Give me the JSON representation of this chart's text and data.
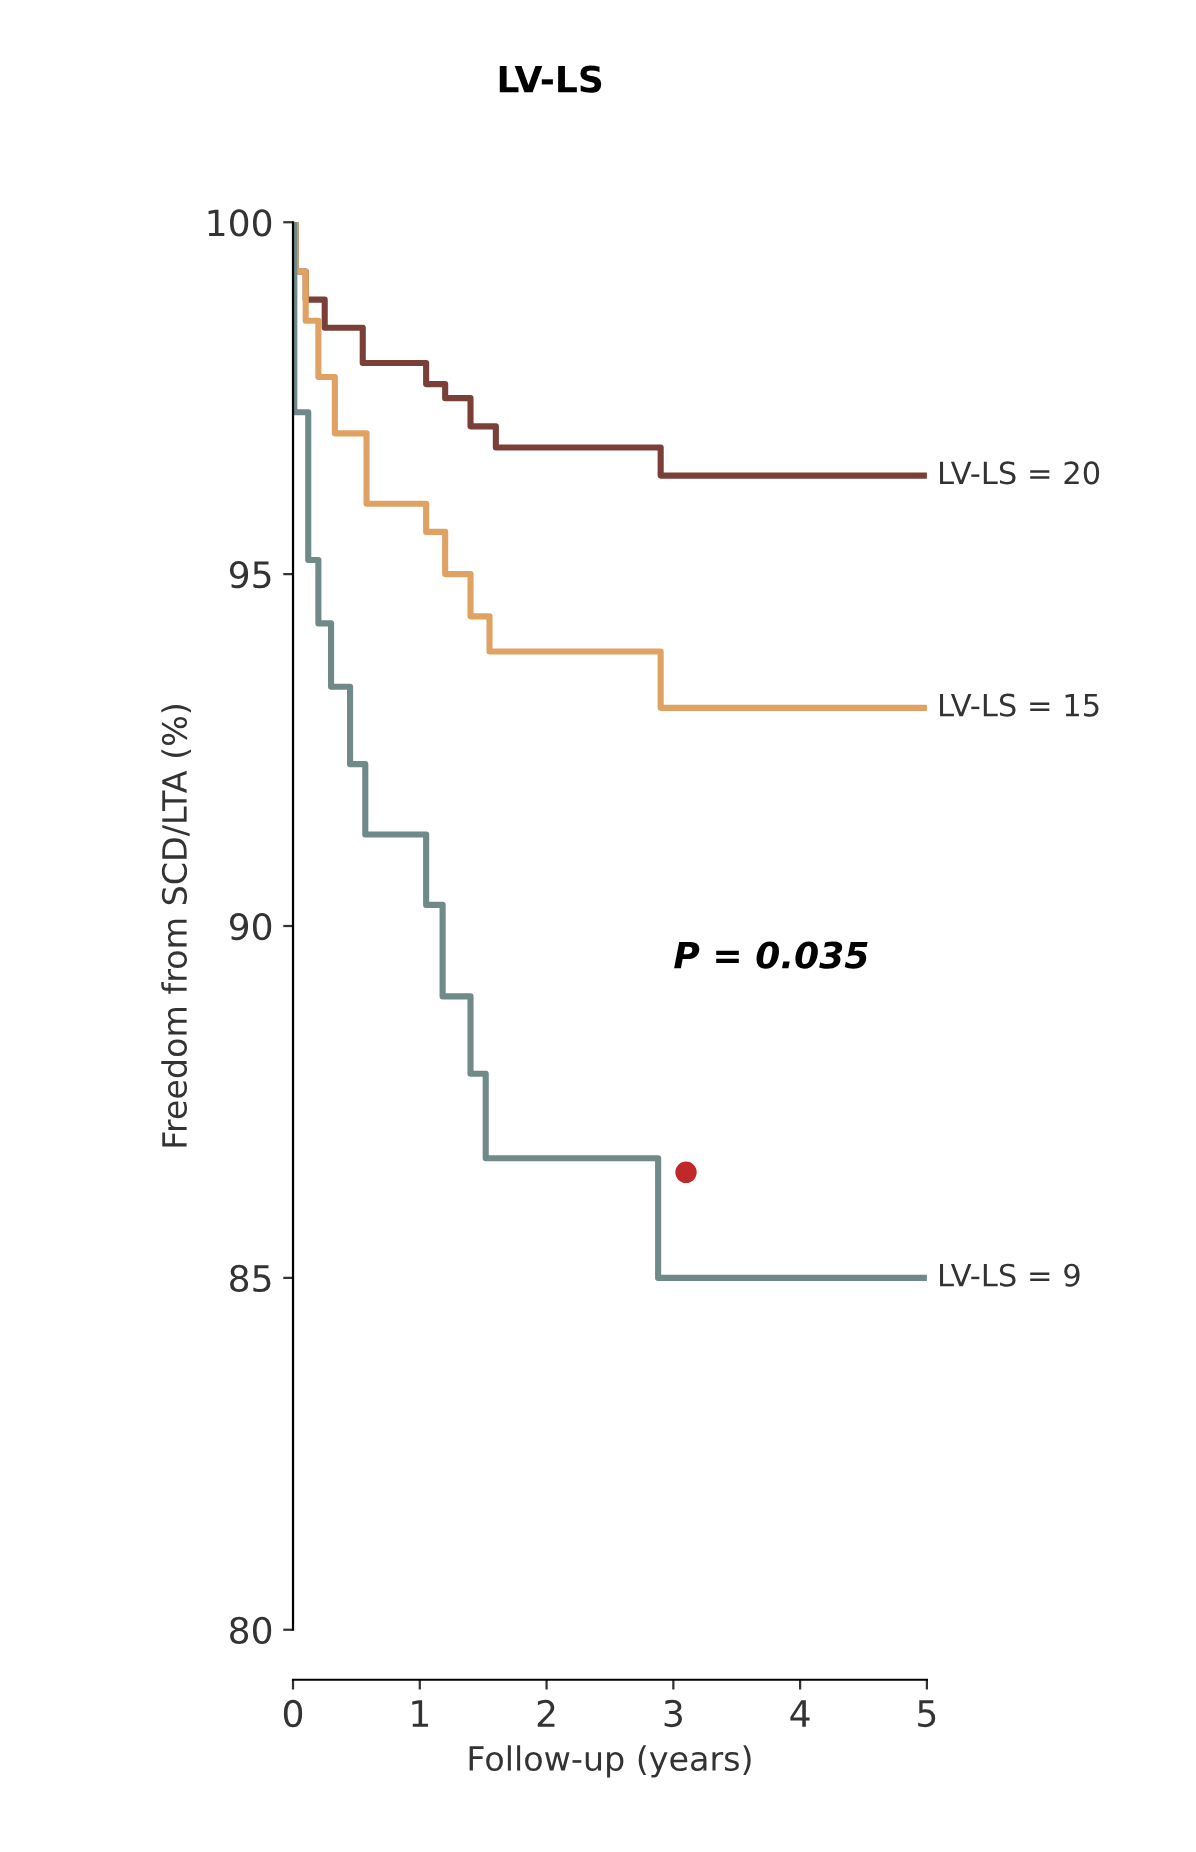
{
  "chart_data": {
    "type": "step",
    "title": "LV-LS",
    "xlabel": "Follow-up (years)",
    "ylabel": "Freedom from SCD/LTA (%)",
    "xlim": [
      0,
      5
    ],
    "ylim": [
      80,
      100
    ],
    "xticks": [
      0,
      1,
      2,
      3,
      4,
      5
    ],
    "yticks": [
      80,
      85,
      90,
      95,
      100
    ],
    "grid": false,
    "legend": false,
    "marker": "none",
    "line_style": "solid",
    "annotations": [
      "P = 0.035"
    ],
    "series": [
      {
        "name": "LV-LS = 20",
        "color": "#7a4038",
        "x": [
          0,
          0.02,
          0.1,
          0.25,
          0.55,
          1.05,
          1.2,
          1.4,
          1.6,
          2.9,
          5
        ],
        "values": [
          100,
          99.3,
          98.9,
          98.5,
          98.0,
          97.7,
          97.5,
          97.1,
          96.8,
          96.4,
          96.4
        ]
      },
      {
        "name": "LV-LS = 15",
        "color": "#e0a262",
        "x": [
          0,
          0.02,
          0.1,
          0.2,
          0.33,
          0.58,
          1.05,
          1.2,
          1.4,
          1.55,
          2.9,
          5
        ],
        "values": [
          100,
          99.3,
          98.6,
          97.8,
          97.0,
          96.0,
          95.6,
          95.0,
          94.4,
          93.9,
          93.1,
          93.1
        ]
      },
      {
        "name": "LV-LS = 9",
        "color": "#6f8a88",
        "x": [
          0,
          0.01,
          0.12,
          0.2,
          0.3,
          0.45,
          0.57,
          1.05,
          1.18,
          1.4,
          1.52,
          2.88,
          5
        ],
        "values": [
          100,
          97.3,
          95.2,
          94.3,
          93.4,
          92.3,
          91.3,
          90.3,
          89.0,
          87.9,
          86.7,
          85.0,
          85.0
        ]
      },
      {
        "type": "scatter",
        "color": "#c0282a",
        "marker": "circle",
        "x": [
          3.1
        ],
        "values": [
          86.5
        ]
      }
    ]
  }
}
